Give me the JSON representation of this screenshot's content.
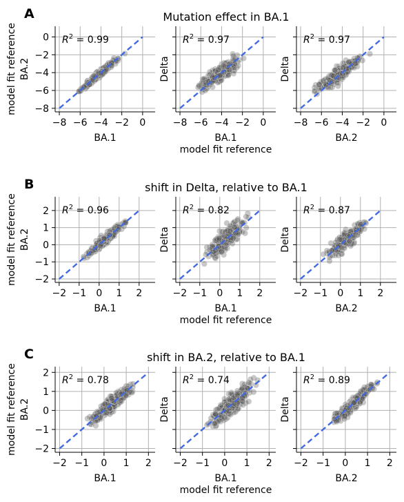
{
  "colors": {
    "point": "#555555",
    "fit_line": "#4169e1",
    "grid": "#b0b0b0",
    "axis": "#000000"
  },
  "rows": [
    {
      "letter": "A",
      "title": "Mutation effect in BA.1",
      "ylabel": [
        "model fit reference",
        "BA.2"
      ],
      "x_common_label": "model fit reference",
      "panels": [
        {
          "xlabel": "BA.1",
          "ylabel": "BA.2",
          "r2": "0.99"
        },
        {
          "xlabel": "BA.1",
          "ylabel": "Delta",
          "r2": "0.97"
        },
        {
          "xlabel": "BA.2",
          "ylabel": "Delta",
          "r2": "0.97"
        }
      ]
    },
    {
      "letter": "B",
      "title": "shift in Delta, relative to BA.1",
      "ylabel": [
        "model fit reference",
        "BA.2"
      ],
      "x_common_label": "model fit reference",
      "panels": [
        {
          "xlabel": "BA.1",
          "ylabel": "BA.2",
          "r2": "0.96"
        },
        {
          "xlabel": "BA.1",
          "ylabel": "Delta",
          "r2": "0.82"
        },
        {
          "xlabel": "BA.2",
          "ylabel": "Delta",
          "r2": "0.87"
        }
      ]
    },
    {
      "letter": "C",
      "title": "shift in BA.2, relative to BA.1",
      "ylabel": [
        "model fit reference",
        "BA.2"
      ],
      "x_common_label": "model fit reference",
      "panels": [
        {
          "xlabel": "BA.1",
          "ylabel": "BA.2",
          "r2": "0.78"
        },
        {
          "xlabel": "BA.1",
          "ylabel": "Delta",
          "r2": "0.74"
        },
        {
          "xlabel": "BA.2",
          "ylabel": "Delta",
          "r2": "0.89"
        }
      ]
    }
  ],
  "chart_data": [
    {
      "type": "scatter",
      "row": "A",
      "title": "Mutation effect in BA.1",
      "xlim": [
        -8.4,
        1.2
      ],
      "ylim": [
        -8.4,
        1.2
      ],
      "xticks": [
        -8,
        -6,
        -4,
        -2,
        0
      ],
      "yticks": [
        -8,
        -6,
        -4,
        -2,
        0
      ],
      "grid": true,
      "fit_line": "dashed y = x",
      "point_spread": [
        0.3,
        0.7,
        0.7
      ],
      "panels": [
        {
          "x_label": "BA.1",
          "y_label": "BA.2",
          "r2": 0.99
        },
        {
          "x_label": "BA.1",
          "y_label": "Delta",
          "r2": 0.97
        },
        {
          "x_label": "BA.2",
          "y_label": "Delta",
          "r2": 0.97
        }
      ]
    },
    {
      "type": "scatter",
      "row": "B",
      "title": "shift in Delta, relative to BA.1",
      "xlim": [
        -2.2,
        2.8
      ],
      "ylim": [
        -2.2,
        2.8
      ],
      "xticks": [
        -2,
        -1,
        0,
        1,
        2
      ],
      "yticks": [
        -2,
        -1,
        0,
        1,
        2
      ],
      "grid": true,
      "fit_line": "dashed y = x",
      "point_spread": [
        0.25,
        0.5,
        0.4
      ],
      "panels": [
        {
          "x_label": "BA.1",
          "y_label": "BA.2",
          "r2": 0.96
        },
        {
          "x_label": "BA.1",
          "y_label": "Delta",
          "r2": 0.82
        },
        {
          "x_label": "BA.2",
          "y_label": "Delta",
          "r2": 0.87
        }
      ]
    },
    {
      "type": "scatter",
      "row": "C",
      "title": "shift in BA.2, relative to BA.1",
      "xlim": [
        -2.2,
        2.3
      ],
      "ylim": [
        -2.2,
        2.3
      ],
      "xticks": [
        -2,
        -1,
        0,
        1,
        2
      ],
      "yticks": [
        -2,
        -1,
        0,
        1,
        2
      ],
      "grid": true,
      "fit_line": "dashed y = x",
      "point_spread": [
        0.35,
        0.45,
        0.3
      ],
      "panels": [
        {
          "x_label": "BA.1",
          "y_label": "BA.2",
          "r2": 0.78
        },
        {
          "x_label": "BA.1",
          "y_label": "Delta",
          "r2": 0.74
        },
        {
          "x_label": "BA.2",
          "y_label": "Delta",
          "r2": 0.89
        }
      ]
    }
  ]
}
